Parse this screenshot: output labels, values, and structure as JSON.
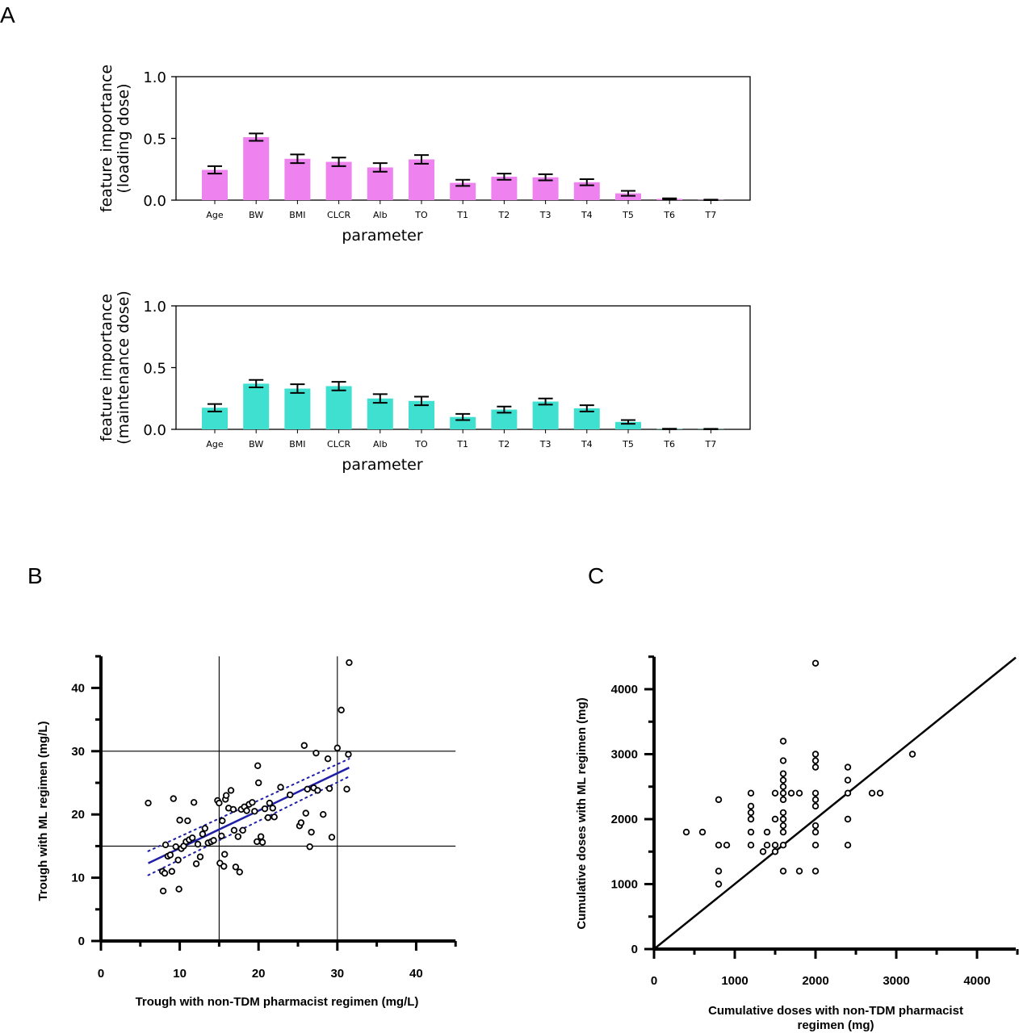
{
  "panel_labels": {
    "a": "A",
    "b": "B",
    "c": "C"
  },
  "colors": {
    "loading_bar": "#EE82EE",
    "maintenance_bar": "#40E0D0",
    "regression_line": "#1F1FA8",
    "axes": "#000000"
  },
  "chart_data": [
    {
      "type": "bar",
      "panel": "A-top",
      "categories": [
        "Age",
        "BW",
        "BMI",
        "CLCR",
        "Alb",
        "TO",
        "T1",
        "T2",
        "T3",
        "T4",
        "T5",
        "T6",
        "T7"
      ],
      "values": [
        0.245,
        0.51,
        0.335,
        0.31,
        0.265,
        0.33,
        0.14,
        0.19,
        0.185,
        0.145,
        0.055,
        0.01,
        0.002
      ],
      "errors": [
        0.03,
        0.03,
        0.035,
        0.035,
        0.035,
        0.035,
        0.025,
        0.025,
        0.025,
        0.025,
        0.02,
        0.005,
        0.002
      ],
      "ylim": [
        0,
        1.0
      ],
      "yticks": [
        "0.0",
        "0.5",
        "1.0"
      ],
      "xlabel": "parameter",
      "ylabel": [
        "feature importance",
        "(loading dose)"
      ]
    },
    {
      "type": "bar",
      "panel": "A-bottom",
      "categories": [
        "Age",
        "BW",
        "BMI",
        "CLCR",
        "Alb",
        "TO",
        "T1",
        "T2",
        "T3",
        "T4",
        "T5",
        "T6",
        "T7"
      ],
      "values": [
        0.175,
        0.37,
        0.33,
        0.35,
        0.25,
        0.23,
        0.1,
        0.16,
        0.225,
        0.17,
        0.06,
        0.003,
        0.002
      ],
      "errors": [
        0.03,
        0.03,
        0.035,
        0.035,
        0.035,
        0.035,
        0.025,
        0.025,
        0.025,
        0.025,
        0.015,
        0.002,
        0.002
      ],
      "ylim": [
        0,
        1.0
      ],
      "yticks": [
        "0.0",
        "0.5",
        "1.0"
      ],
      "xlabel": "parameter",
      "ylabel": [
        "feature importance",
        "(maintenance dose)"
      ]
    },
    {
      "type": "scatter",
      "panel": "B",
      "xlabel": "Trough  with non-TDM pharmacist regimen (mg/L)",
      "ylabel": "Trough  with ML regimen (mg/L)",
      "xlim": [
        0,
        45
      ],
      "ylim": [
        0,
        45
      ],
      "xticks": [
        "0",
        "10",
        "20",
        "30",
        "40"
      ],
      "yticks": [
        "0",
        "10",
        "20",
        "30",
        "40"
      ],
      "reference_lines": {
        "x": [
          15,
          30
        ],
        "y": [
          15,
          30
        ]
      },
      "regression": {
        "x": [
          6,
          31.5
        ],
        "y": [
          12.3,
          27.4
        ]
      },
      "ci_upper": {
        "x": [
          6,
          31.5
        ],
        "y": [
          14.2,
          28.8
        ]
      },
      "ci_lower": {
        "x": [
          6,
          31.5
        ],
        "y": [
          10.4,
          26.0
        ]
      },
      "points": [
        [
          6,
          21.8
        ],
        [
          7.8,
          11
        ],
        [
          7.9,
          7.9
        ],
        [
          8.1,
          10.7
        ],
        [
          8.2,
          15.2
        ],
        [
          8.5,
          13.4
        ],
        [
          8.8,
          13.6
        ],
        [
          9.0,
          11
        ],
        [
          9.2,
          22.5
        ],
        [
          9.5,
          14.9
        ],
        [
          9.8,
          12.8
        ],
        [
          9.9,
          8.2
        ],
        [
          10,
          19.1
        ],
        [
          10.2,
          14.6
        ],
        [
          10.5,
          15
        ],
        [
          10.8,
          15.7
        ],
        [
          11,
          19
        ],
        [
          11.2,
          16
        ],
        [
          11.6,
          16.3
        ],
        [
          11.8,
          21.9
        ],
        [
          12.1,
          12.2
        ],
        [
          12.3,
          15.3
        ],
        [
          12.6,
          13.3
        ],
        [
          12.9,
          16.9
        ],
        [
          13.2,
          17.8
        ],
        [
          13.6,
          15.5
        ],
        [
          14.0,
          15.7
        ],
        [
          14.3,
          15.9
        ],
        [
          14.8,
          22.2
        ],
        [
          15.0,
          21.8
        ],
        [
          15.1,
          12.3
        ],
        [
          15.3,
          16.6
        ],
        [
          15.4,
          19.0
        ],
        [
          15.6,
          11.8
        ],
        [
          15.7,
          13.7
        ],
        [
          15.8,
          22.4
        ],
        [
          15.9,
          23.0
        ],
        [
          16.2,
          21.0
        ],
        [
          16.5,
          23.8
        ],
        [
          16.8,
          20.8
        ],
        [
          16.9,
          17.5
        ],
        [
          17.1,
          11.7
        ],
        [
          17.4,
          16.5
        ],
        [
          17.6,
          10.9
        ],
        [
          17.8,
          20.8
        ],
        [
          18.0,
          17.5
        ],
        [
          18.2,
          21.2
        ],
        [
          18.5,
          20.6
        ],
        [
          18.8,
          21.6
        ],
        [
          19.2,
          21.9
        ],
        [
          19.5,
          20.5
        ],
        [
          19.8,
          15.7
        ],
        [
          20.0,
          25.0
        ],
        [
          19.9,
          27.7
        ],
        [
          20.3,
          16.5
        ],
        [
          20.5,
          15.6
        ],
        [
          20.8,
          20.9
        ],
        [
          21.2,
          19.5
        ],
        [
          21.4,
          21.8
        ],
        [
          21.8,
          21.0
        ],
        [
          22.0,
          19.6
        ],
        [
          22.8,
          24.3
        ],
        [
          24.0,
          23.1
        ],
        [
          25.2,
          18.2
        ],
        [
          25.4,
          18.7
        ],
        [
          25.8,
          30.9
        ],
        [
          26.0,
          20.2
        ],
        [
          26.2,
          24.0
        ],
        [
          26.5,
          14.9
        ],
        [
          26.7,
          17.2
        ],
        [
          27.0,
          24.2
        ],
        [
          27.3,
          29.7
        ],
        [
          27.5,
          23.8
        ],
        [
          28.2,
          20.0
        ],
        [
          28.8,
          28.8
        ],
        [
          29.0,
          24.1
        ],
        [
          29.3,
          16.4
        ],
        [
          30.0,
          30.5
        ],
        [
          30.5,
          36.5
        ],
        [
          31.2,
          24.0
        ],
        [
          31.4,
          29.5
        ],
        [
          31.5,
          44
        ]
      ]
    },
    {
      "type": "scatter",
      "panel": "C",
      "xlabel": [
        "Cumulative doses  with non-TDM pharmacist",
        "regimen (mg)"
      ],
      "ylabel": "Cumulative doses  with ML regimen (mg)",
      "xlim": [
        0,
        4500
      ],
      "ylim": [
        0,
        4500
      ],
      "xticks": [
        "0",
        "1000",
        "2000",
        "3000",
        "4000"
      ],
      "yticks": [
        "0",
        "1000",
        "2000",
        "3000",
        "4000"
      ],
      "identity_line": {
        "x": [
          0,
          4500
        ],
        "y": [
          0,
          4500
        ]
      },
      "points": [
        [
          400,
          1800
        ],
        [
          600,
          1800
        ],
        [
          800,
          2300
        ],
        [
          800,
          1600
        ],
        [
          800,
          1200
        ],
        [
          800,
          1000
        ],
        [
          900,
          1600
        ],
        [
          1200,
          2400
        ],
        [
          1200,
          2200
        ],
        [
          1200,
          2100
        ],
        [
          1200,
          2000
        ],
        [
          1200,
          1800
        ],
        [
          1200,
          1600
        ],
        [
          1350,
          1500
        ],
        [
          1400,
          1800
        ],
        [
          1400,
          1600
        ],
        [
          1500,
          2400
        ],
        [
          1500,
          2000
        ],
        [
          1500,
          1600
        ],
        [
          1500,
          1500
        ],
        [
          1600,
          3200
        ],
        [
          1600,
          2900
        ],
        [
          1600,
          2700
        ],
        [
          1600,
          2600
        ],
        [
          1600,
          2500
        ],
        [
          1600,
          2400
        ],
        [
          1600,
          2300
        ],
        [
          1600,
          2100
        ],
        [
          1600,
          2000
        ],
        [
          1600,
          1900
        ],
        [
          1600,
          1800
        ],
        [
          1600,
          1600
        ],
        [
          1600,
          1200
        ],
        [
          1700,
          2400
        ],
        [
          1800,
          2400
        ],
        [
          1800,
          1200
        ],
        [
          2000,
          4400
        ],
        [
          2000,
          3000
        ],
        [
          2000,
          2900
        ],
        [
          2000,
          2800
        ],
        [
          2000,
          2400
        ],
        [
          2000,
          2300
        ],
        [
          2000,
          2200
        ],
        [
          2000,
          1900
        ],
        [
          2000,
          1800
        ],
        [
          2000,
          1600
        ],
        [
          2000,
          1200
        ],
        [
          2400,
          2800
        ],
        [
          2400,
          2600
        ],
        [
          2400,
          2400
        ],
        [
          2400,
          2000
        ],
        [
          2400,
          1600
        ],
        [
          2700,
          2400
        ],
        [
          2800,
          2400
        ],
        [
          3200,
          3000
        ]
      ]
    }
  ]
}
